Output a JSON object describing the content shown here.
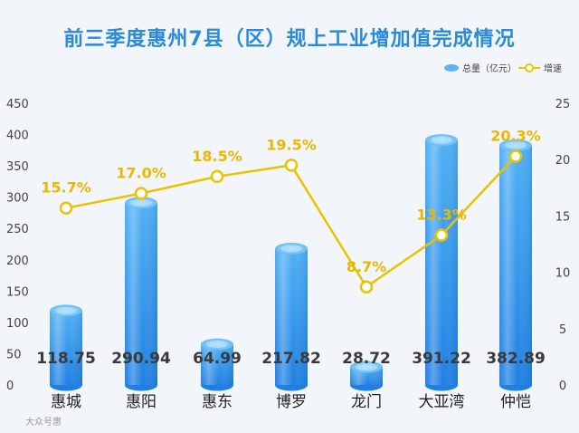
{
  "chart_data": {
    "type": "bar",
    "title": "前三季度惠州7县（区）规上工业增加值完成情况",
    "categories": [
      "惠城",
      "惠阳",
      "惠东",
      "博罗",
      "龙门",
      "大亚湾",
      "仲恺"
    ],
    "series": [
      {
        "name": "总量（亿元）",
        "type": "bar",
        "axis": "left",
        "values": [
          118.75,
          290.94,
          64.99,
          217.82,
          28.72,
          391.22,
          382.89
        ],
        "labels": [
          "118.75",
          "290.94",
          "64.99",
          "217.82",
          "28.72",
          "391.22",
          "382.89"
        ]
      },
      {
        "name": "增速",
        "type": "line",
        "axis": "right",
        "values": [
          15.7,
          17.0,
          18.5,
          19.5,
          8.7,
          13.3,
          20.3
        ],
        "labels": [
          "15.7%",
          "17.0%",
          "18.5%",
          "19.5%",
          "8.7%",
          "13.3%",
          "20.3%"
        ]
      }
    ],
    "y_left": {
      "range": [
        0,
        450
      ],
      "ticks": [
        "0",
        "50",
        "100",
        "150",
        "200",
        "250",
        "300",
        "350",
        "400",
        "450"
      ]
    },
    "y_right": {
      "range": [
        0,
        25
      ],
      "ticks": [
        "0",
        "5",
        "10",
        "15",
        "20",
        "25"
      ]
    },
    "grid": false,
    "legend_position": "top-right",
    "colors": {
      "bar_top": "#8fd0fb",
      "bar_mid": "#3ea2f0",
      "bar_bottom": "#1e7fe0",
      "line": "#eac300",
      "title": "#2a8ad8"
    },
    "watermark": "大众号惠"
  }
}
